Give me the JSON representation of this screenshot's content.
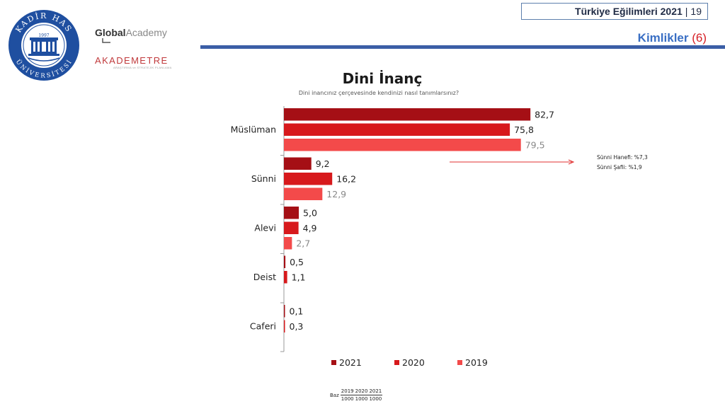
{
  "header": {
    "logo_kh_top": "KADİR HAS",
    "logo_kh_year": "1997",
    "logo_kh_bottom": "ÜNİVERSİTESİ",
    "logo_ga_bold": "Global",
    "logo_ga_light": "Academy",
    "logo_ak": "AKADEMETRE",
    "logo_ak_sub": "ARAŞTIRMA ve STRATEJİK PLANLAMA",
    "report_title": "Türkiye Eğilimleri 2021",
    "page_number": "19",
    "section_title": "Kimlikler",
    "section_number": "(6)"
  },
  "chart_data": {
    "type": "bar",
    "orientation": "horizontal",
    "title": "Dini İnanç",
    "subtitle": "Dini inancınız çerçevesinde kendinizi nasıl tanımlarsınız?",
    "categories": [
      "Müslüman",
      "Sünni",
      "Alevi",
      "Deist",
      "Caferi"
    ],
    "series": [
      {
        "name": "2021",
        "values": [
          82.7,
          9.2,
          5.0,
          0.5,
          0.1
        ],
        "labels": [
          "82,7",
          "9,2",
          "5,0",
          "0,5",
          "0,1"
        ],
        "color": "#a50f15"
      },
      {
        "name": "2020",
        "values": [
          75.8,
          16.2,
          4.9,
          1.1,
          0.3
        ],
        "labels": [
          "75,8",
          "16,2",
          "4,9",
          "1,1",
          "0,3"
        ],
        "color": "#d7191c"
      },
      {
        "name": "2019",
        "values": [
          79.5,
          12.9,
          2.7,
          0.0,
          0.0
        ],
        "labels": [
          "79,5",
          "12,9",
          "2,7",
          "",
          ""
        ],
        "color": "#f34a4a"
      }
    ],
    "xlim": [
      0,
      100
    ],
    "grid": false,
    "legend_position": "bottom",
    "annotation_lines": [
      "Sünni Hanefi: %7,3",
      "Sünni Şafii: %1,9"
    ]
  },
  "base": {
    "label": "Baz",
    "years": [
      "2019",
      "2020",
      "2021"
    ],
    "counts": [
      "1000",
      "1000",
      "1000"
    ]
  },
  "colors": {
    "accent_blue": "#3b5ea6",
    "section_blue": "#3a6fc4",
    "section_red": "#d62027",
    "label_2019": "#888888"
  }
}
